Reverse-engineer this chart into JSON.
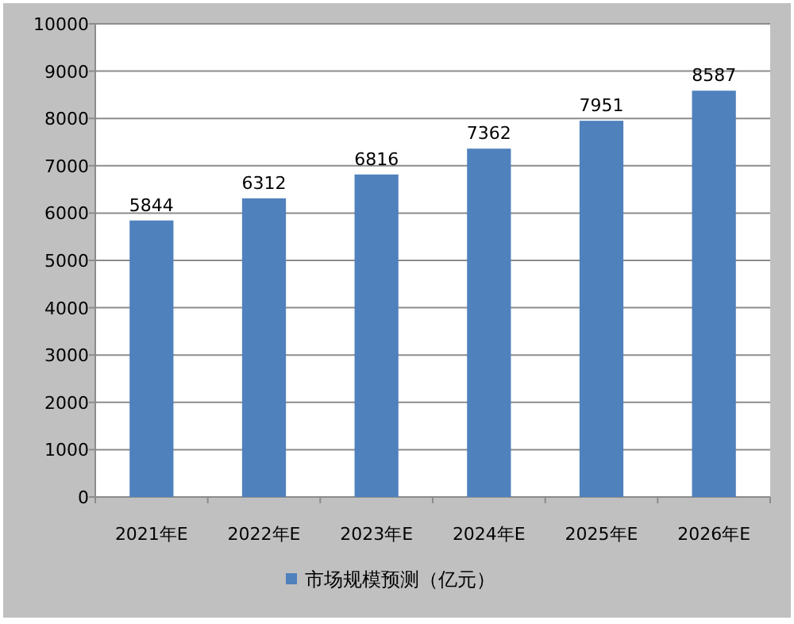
{
  "chart_data": {
    "type": "bar",
    "categories": [
      "2021年E",
      "2022年E",
      "2023年E",
      "2024年E",
      "2025年E",
      "2026年E"
    ],
    "series": [
      {
        "name": "市场规模预测（亿元）",
        "color": "#4f81bd",
        "values": [
          5844,
          6312,
          6816,
          7362,
          7951,
          8587
        ]
      }
    ],
    "ylim": [
      0,
      10000
    ],
    "yticks": [
      0,
      1000,
      2000,
      3000,
      4000,
      5000,
      6000,
      7000,
      8000,
      9000,
      10000
    ],
    "grid": "y",
    "legend": "bottom",
    "data_labels": true
  }
}
